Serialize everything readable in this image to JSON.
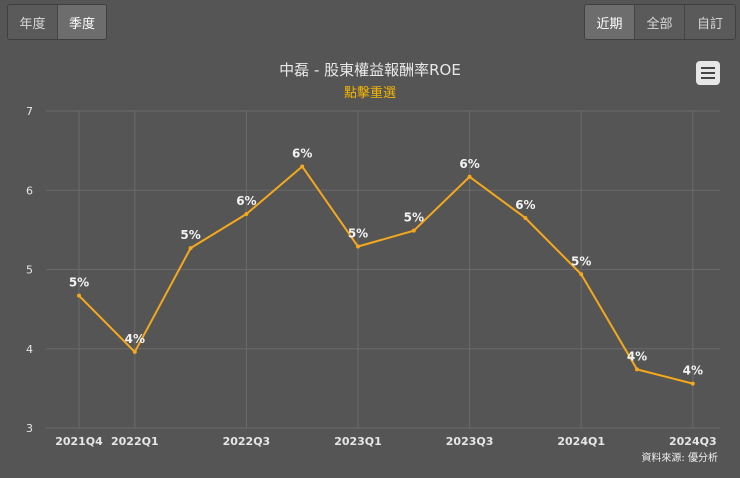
{
  "toolbar": {
    "period_buttons": [
      {
        "label": "年度",
        "active": false
      },
      {
        "label": "季度",
        "active": true
      }
    ],
    "range_buttons": [
      {
        "label": "近期",
        "active": true
      },
      {
        "label": "全部",
        "active": false
      },
      {
        "label": "自訂",
        "active": false
      }
    ]
  },
  "chart_title": "中磊 - 股東權益報酬率ROE",
  "chart_subtitle": "點擊重選",
  "menu_icon": "hamburger-icon",
  "credit": "資料來源: 優分析",
  "colors": {
    "line": "#f4a81c",
    "background": "#555555",
    "grid": "#6a6a6a",
    "subtitle": "#f4b400"
  },
  "chart_data": {
    "type": "line",
    "title": "中磊 - 股東權益報酬率ROE",
    "subtitle": "點擊重選",
    "x": [
      "2021Q4",
      "2022Q1",
      "2022Q2",
      "2022Q3",
      "2022Q4",
      "2023Q1",
      "2023Q2",
      "2023Q3",
      "2023Q4",
      "2024Q1",
      "2024Q2",
      "2024Q3"
    ],
    "x_tick_labels": [
      "2021Q4",
      "2022Q1",
      "",
      "2022Q3",
      "",
      "2023Q1",
      "",
      "2023Q3",
      "",
      "2024Q1",
      "",
      "2024Q3"
    ],
    "series": [
      {
        "values": [
          4.67,
          3.96,
          5.27,
          5.7,
          6.3,
          5.29,
          5.49,
          6.17,
          5.65,
          4.94,
          3.74,
          3.56
        ],
        "data_labels": [
          "5%",
          "4%",
          "5%",
          "6%",
          "6%",
          "5%",
          "5%",
          "6%",
          "6%",
          "5%",
          "4%",
          "4%"
        ]
      }
    ],
    "y_ticks": [
      3,
      4,
      5,
      6,
      7
    ],
    "ylim": [
      3,
      7
    ],
    "grid": true,
    "legend": "none"
  }
}
